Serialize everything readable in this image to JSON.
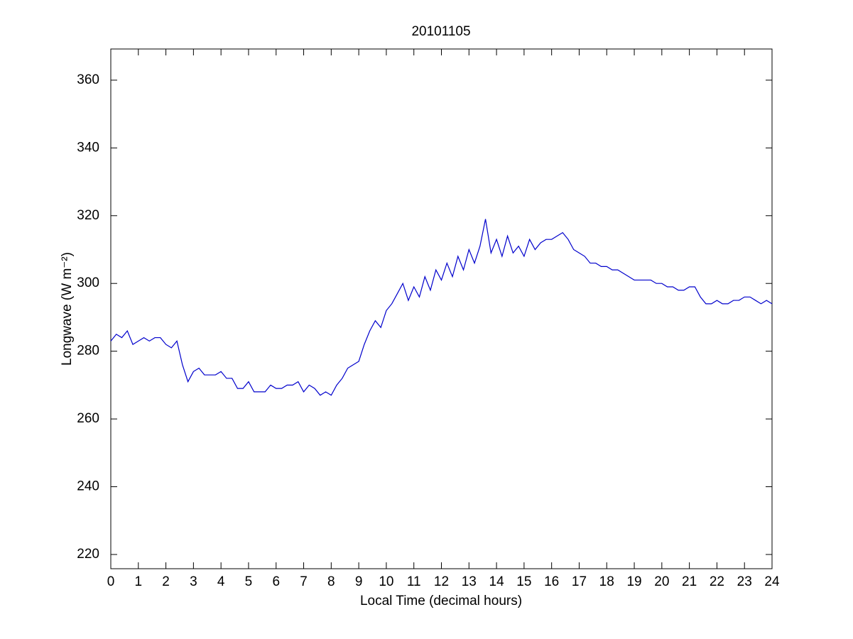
{
  "chart_data": {
    "type": "line",
    "title": "20101105",
    "x_label": "Local Time (decimal hours)",
    "y_label": "Longwave (W m⁻²)",
    "x": [
      0,
      0.2,
      0.4,
      0.6,
      0.8,
      1,
      1.2,
      1.4,
      1.6,
      1.8,
      2,
      2.2,
      2.4,
      2.6,
      2.8,
      3,
      3.2,
      3.4,
      3.6,
      3.8,
      4,
      4.2,
      4.4,
      4.6,
      4.8,
      5,
      5.2,
      5.4,
      5.6,
      5.8,
      6,
      6.2,
      6.4,
      6.6,
      6.8,
      7,
      7.2,
      7.4,
      7.6,
      7.8,
      8,
      8.2,
      8.4,
      8.6,
      8.8,
      9,
      9.2,
      9.4,
      9.6,
      9.8,
      10,
      10.2,
      10.4,
      10.6,
      10.8,
      11,
      11.2,
      11.4,
      11.6,
      11.8,
      12,
      12.2,
      12.4,
      12.6,
      12.8,
      13,
      13.2,
      13.4,
      13.6,
      13.8,
      14,
      14.2,
      14.4,
      14.6,
      14.8,
      15,
      15.2,
      15.4,
      15.6,
      15.8,
      16,
      16.2,
      16.4,
      16.6,
      16.8,
      17,
      17.2,
      17.4,
      17.6,
      17.8,
      18,
      18.2,
      18.4,
      18.6,
      18.8,
      19,
      19.2,
      19.4,
      19.6,
      19.8,
      20,
      20.2,
      20.4,
      20.6,
      20.8,
      21,
      21.2,
      21.4,
      21.6,
      21.8,
      22,
      22.2,
      22.4,
      22.6,
      22.8,
      23,
      23.2,
      23.4,
      23.6,
      23.8,
      24
    ],
    "series": [
      {
        "color": "#0000cc",
        "values": [
          283,
          285,
          284,
          286,
          282,
          283,
          284,
          283,
          284,
          284,
          282,
          281,
          283,
          276,
          271,
          274,
          275,
          273,
          273,
          273,
          274,
          272,
          272,
          269,
          269,
          271,
          268,
          268,
          268,
          270,
          269,
          269,
          270,
          270,
          271,
          268,
          270,
          269,
          267,
          268,
          267,
          270,
          272,
          275,
          276,
          277,
          282,
          286,
          289,
          287,
          292,
          294,
          297,
          300,
          295,
          299,
          296,
          302,
          298,
          304,
          301,
          306,
          302,
          308,
          304,
          310,
          306,
          311,
          319,
          309,
          313,
          308,
          314,
          309,
          311,
          308,
          313,
          310,
          312,
          313,
          313,
          314,
          315,
          313,
          310,
          309,
          308,
          306,
          306,
          305,
          305,
          304,
          304,
          303,
          302,
          301,
          301,
          301,
          301,
          300,
          300,
          299,
          299,
          298,
          298,
          299,
          299,
          296,
          294,
          294,
          295,
          294,
          294,
          295,
          295,
          296,
          296,
          295,
          294,
          295,
          294
        ]
      }
    ],
    "xlim": [
      0,
      24
    ],
    "xticks": [
      0,
      1,
      2,
      3,
      4,
      5,
      6,
      7,
      8,
      9,
      10,
      11,
      12,
      13,
      14,
      15,
      16,
      17,
      18,
      19,
      20,
      21,
      22,
      23,
      24
    ],
    "ylim": [
      215.8,
      369.2
    ],
    "yticks": [
      220,
      240,
      260,
      280,
      300,
      320,
      340,
      360
    ]
  }
}
